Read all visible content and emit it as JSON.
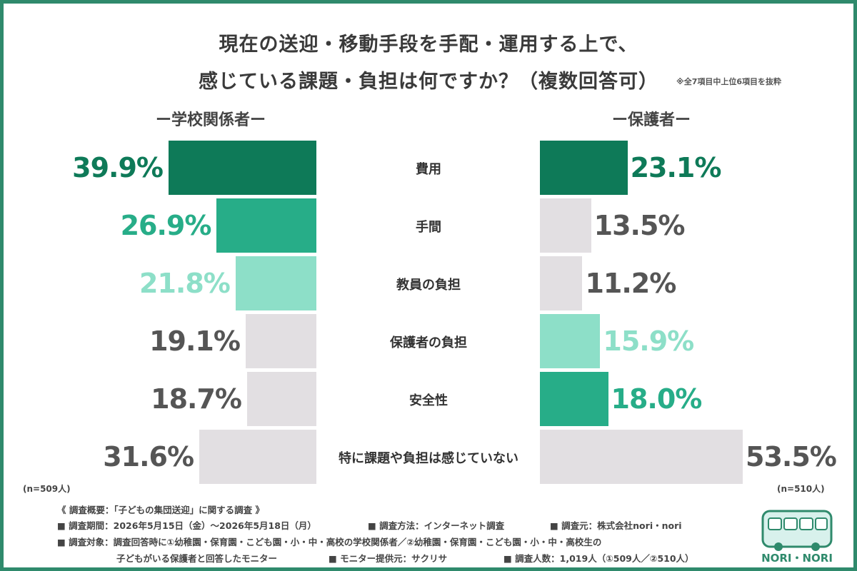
{
  "title": {
    "line1": "現在の送迎・移動手段を手配・運用する上で、",
    "line2": "感じている課題・負担は何ですか？（複数回答可）",
    "note": "※全7項目中上位6項目を抜粋"
  },
  "groups": {
    "left": "ー学校関係者ー",
    "right": "ー保護者ー",
    "left_n": "(n=509人)",
    "right_n": "(n=510人)"
  },
  "chart_data": {
    "type": "bar",
    "categories": [
      "費用",
      "手間",
      "教員の負担",
      "保護者の負担",
      "安全性",
      "特に課題や負担は感じていない"
    ],
    "series": [
      {
        "name": "ー学校関係者ー",
        "values": [
          39.9,
          26.9,
          21.8,
          19.1,
          18.7,
          31.6
        ],
        "labels": [
          "39.9%",
          "26.9%",
          "21.8%",
          "19.1%",
          "18.7%",
          "31.6%"
        ],
        "colors": [
          "#0e7a58",
          "#27ad88",
          "#8ddfc8",
          "#e2dfe2",
          "#e2dfe2",
          "#e2dfe2"
        ],
        "label_colors": [
          "#0e7a58",
          "#27ad88",
          "#8ddfc8",
          "#555555",
          "#555555",
          "#555555"
        ]
      },
      {
        "name": "ー保護者ー",
        "values": [
          23.1,
          13.5,
          11.2,
          15.9,
          18.0,
          53.5
        ],
        "labels": [
          "23.1%",
          "13.5%",
          "11.2%",
          "15.9%",
          "18.0%",
          "53.5%"
        ],
        "colors": [
          "#0e7a58",
          "#e2dfe2",
          "#e2dfe2",
          "#8ddfc8",
          "#27ad88",
          "#e2dfe2"
        ],
        "label_colors": [
          "#0e7a58",
          "#555555",
          "#555555",
          "#8ddfc8",
          "#27ad88",
          "#555555"
        ]
      }
    ]
  },
  "footer": {
    "heading": "《 調査概要：「子どもの集団送迎」に関する調査 》",
    "period": "■ 調査期間：2026年5月15日（金）～2026年5月18日（月）",
    "method": "■ 調査方法：インターネット調査",
    "source": "■ 調査元：株式会社nori・nori",
    "target": "■ 調査対象：調査回答時に①幼稚園・保育園・こども園・小・中・高校の学校関係者／②幼稚園・保育園・こども園・小・中・高校生の",
    "target2": "子どもがいる保護者と回答したモニター",
    "provider": "■ モニター提供元：サクリサ",
    "count": "■ 調査人数：1,019人（①509人／②510人）"
  },
  "logo": {
    "text": "NORI・NORI",
    "color": "#2f8a6c"
  }
}
